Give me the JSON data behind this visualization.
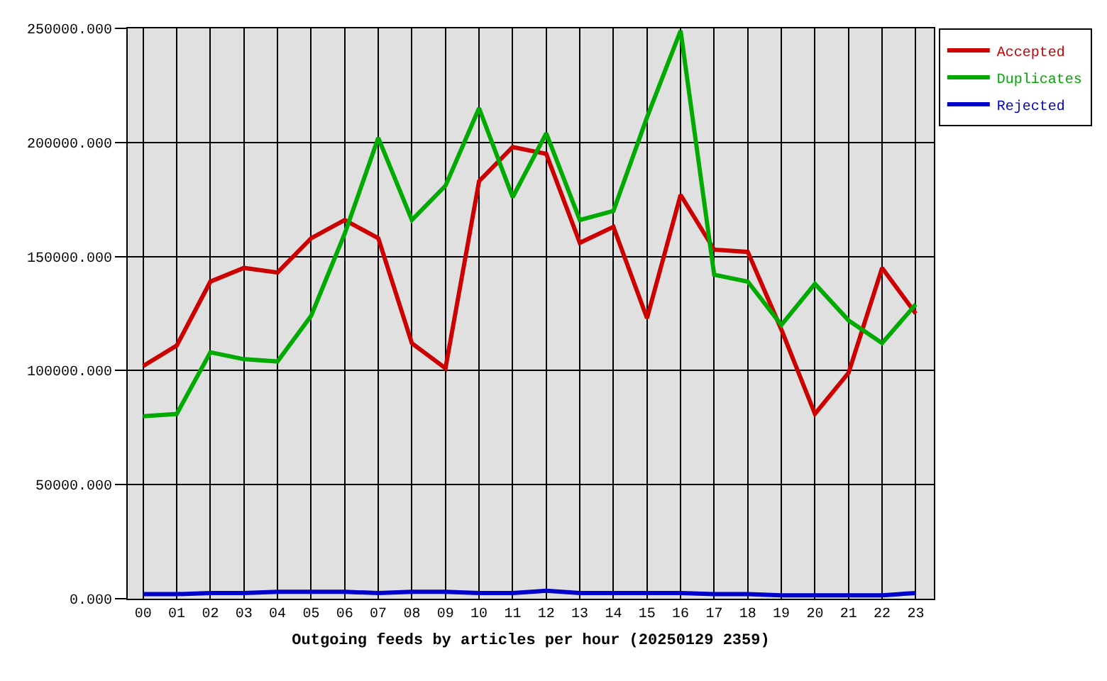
{
  "chart_data": {
    "type": "line",
    "xlabel": "Outgoing feeds by articles per hour (20250129 2359)",
    "categories": [
      "00",
      "01",
      "02",
      "03",
      "04",
      "05",
      "06",
      "07",
      "08",
      "09",
      "10",
      "11",
      "12",
      "13",
      "14",
      "15",
      "16",
      "17",
      "18",
      "19",
      "20",
      "21",
      "22",
      "23"
    ],
    "series": [
      {
        "name": "Accepted",
        "color": "#cc0000",
        "values": [
          102000,
          111000,
          139000,
          145000,
          143000,
          158000,
          166000,
          158000,
          112000,
          101000,
          183000,
          198000,
          195000,
          156000,
          163000,
          123000,
          177000,
          153000,
          152000,
          118000,
          81000,
          99000,
          145000,
          125000
        ]
      },
      {
        "name": "Duplicates",
        "color": "#00aa00",
        "values": [
          80000,
          81000,
          108000,
          105000,
          104000,
          124000,
          160000,
          202000,
          166000,
          181000,
          215000,
          176000,
          204000,
          166000,
          170000,
          211000,
          249000,
          142000,
          139000,
          120000,
          138000,
          122000,
          112000,
          129000
        ]
      },
      {
        "name": "Rejected",
        "color": "#0000cc",
        "values": [
          2000,
          2000,
          2500,
          2500,
          3000,
          3000,
          3000,
          2500,
          3000,
          3000,
          2500,
          2500,
          3500,
          2500,
          2500,
          2500,
          2500,
          2000,
          2000,
          1500,
          1500,
          1500,
          1500,
          2500
        ]
      }
    ],
    "ylim": [
      0,
      250000
    ],
    "yticks": [
      {
        "value": 0,
        "label": "0.000"
      },
      {
        "value": 50000,
        "label": "50000.000"
      },
      {
        "value": 100000,
        "label": "100000.000"
      },
      {
        "value": 150000,
        "label": "150000.000"
      },
      {
        "value": 200000,
        "label": "200000.000"
      },
      {
        "value": 250000,
        "label": "250000.000"
      }
    ],
    "grid": true,
    "legend": "top right",
    "line_style": "solid"
  }
}
